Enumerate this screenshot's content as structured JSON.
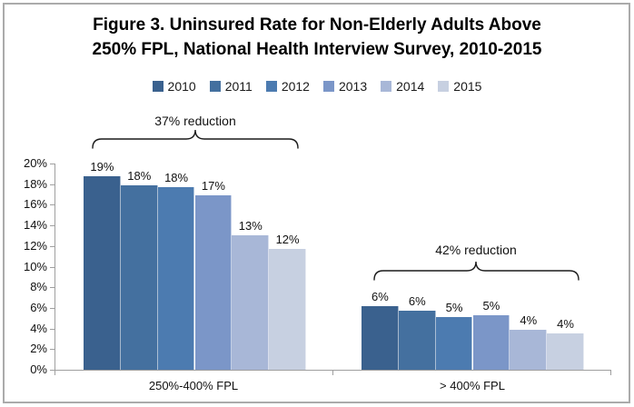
{
  "figure": {
    "title_line1": "Figure 3. Uninsured Rate for Non-Elderly Adults Above",
    "title_line2": "250% FPL, National Health Interview Survey, 2010-2015"
  },
  "chart_data": {
    "type": "bar",
    "title": "Figure 3. Uninsured Rate for Non-Elderly Adults Above 250% FPL, National Health Interview Survey, 2010-2015",
    "categories": [
      "250%-400% FPL",
      "> 400% FPL"
    ],
    "series": [
      {
        "name": "2010",
        "color": "#3a618e",
        "values": [
          18.8,
          6.2
        ],
        "labels": [
          "19%",
          "6%"
        ]
      },
      {
        "name": "2011",
        "color": "#44709f",
        "values": [
          17.9,
          5.7
        ],
        "labels": [
          "18%",
          "6%"
        ]
      },
      {
        "name": "2012",
        "color": "#4c7bb0",
        "values": [
          17.7,
          5.1
        ],
        "labels": [
          "18%",
          "5%"
        ]
      },
      {
        "name": "2013",
        "color": "#7b96c8",
        "values": [
          16.9,
          5.3
        ],
        "labels": [
          "17%",
          "5%"
        ]
      },
      {
        "name": "2014",
        "color": "#a8b7d7",
        "values": [
          13.0,
          3.9
        ],
        "labels": [
          "13%",
          "4%"
        ]
      },
      {
        "name": "2015",
        "color": "#c7d0e1",
        "values": [
          11.7,
          3.5
        ],
        "labels": [
          "12%",
          "4%"
        ]
      }
    ],
    "ylim": [
      0,
      20
    ],
    "ytick_step": 2,
    "yticks": [
      "0%",
      "2%",
      "4%",
      "6%",
      "8%",
      "10%",
      "12%",
      "14%",
      "16%",
      "18%",
      "20%"
    ],
    "grid": false,
    "legend_position": "top",
    "annotations": [
      {
        "text": "37% reduction",
        "category": "250%-400% FPL"
      },
      {
        "text": "42% reduction",
        "category": "> 400% FPL"
      }
    ]
  }
}
